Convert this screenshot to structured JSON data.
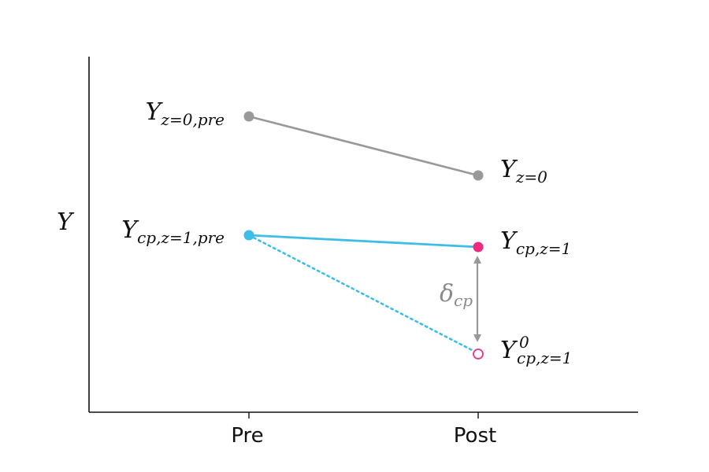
{
  "x_axis": {
    "ticks": [
      "Pre",
      "Post"
    ]
  },
  "y_axis": {
    "label": "Y"
  },
  "colors": {
    "control": "#999999",
    "treated_pre": "#3dbde8",
    "treated_post": "#ee2a7b",
    "counterfactual_line": "#3dbde8",
    "counterfactual_point": "#e8338a",
    "effect_arrow": "#999999",
    "axis": "#111111"
  },
  "points": {
    "control_pre": {
      "main": "Y",
      "sub": "z=0,pre"
    },
    "control_post": {
      "main": "Y",
      "sub": "z=0"
    },
    "treated_pre": {
      "main": "Y",
      "sub": "cp,z=1,pre"
    },
    "treated_post": {
      "main": "Y",
      "sub": "cp,z=1"
    },
    "counterfactual_post": {
      "main": "Y",
      "sup": "0",
      "sub": "cp,z=1"
    }
  },
  "effect": {
    "main": "δ",
    "sub": "cp"
  }
}
